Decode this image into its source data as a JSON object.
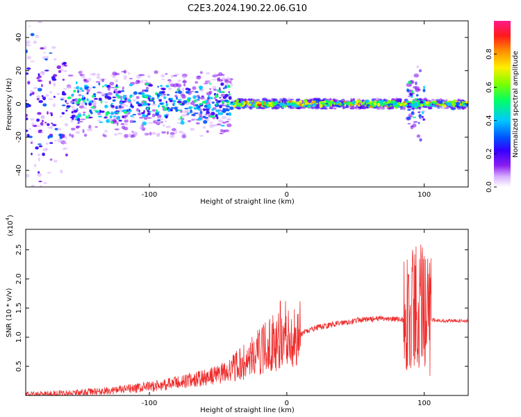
{
  "title": "C2E3.2024.190.22.06.G10",
  "chart_data": [
    {
      "type": "heatmap",
      "xlabel": "Height of straight line (km)",
      "ylabel": "Frequency (Hz)",
      "xlim": [
        -190,
        132
      ],
      "ylim": [
        -50,
        50
      ],
      "xticks": [
        -100,
        0,
        100
      ],
      "yticks": [
        -40,
        -20,
        0,
        20,
        40
      ],
      "colorbar": {
        "label": "Normalized spectral amplitude",
        "range": [
          0,
          1
        ],
        "ticks": [
          "0.0",
          "0.2",
          "0.4",
          "0.6",
          "0.8"
        ],
        "colors": [
          "#ffffff",
          "#d9b3ff",
          "#8a1cf0",
          "#3300ff",
          "#0055ff",
          "#00c8ff",
          "#00ff66",
          "#7dff00",
          "#ffee00",
          "#ff8c00",
          "#ff1a1a",
          "#ff1a8c"
        ]
      },
      "features": [
        {
          "x_range": [
            -190,
            -160
          ],
          "freq_center": 0,
          "freq_halfwidth": 50,
          "amplitude": 0.35
        },
        {
          "x_range": [
            -160,
            -40
          ],
          "freq_center": 0,
          "freq_halfwidth": 14,
          "amplitude": 0.55
        },
        {
          "x_range": [
            -40,
            132
          ],
          "freq_center": 0,
          "freq_halfwidth": 2,
          "amplitude": 0.8
        },
        {
          "x_range": [
            -20,
            -10
          ],
          "freq_center": 0,
          "freq_halfwidth": 1,
          "amplitude": 0.95
        },
        {
          "x_range": [
            88,
            100
          ],
          "freq_center": 0,
          "freq_halfwidth": 16,
          "amplitude": 0.6
        }
      ]
    },
    {
      "type": "line",
      "xlabel": "Height of straight line (km)",
      "ylabel": "SNR (10 * v/v)",
      "y_multiplier": "(x10",
      "y_multiplier_exp": "4",
      "xlim": [
        -190,
        132
      ],
      "ylim": [
        0,
        2.85
      ],
      "xticks": [
        -100,
        0,
        100
      ],
      "yticks": [
        "0.5",
        "1.0",
        "1.5",
        "2.0",
        "2.5"
      ],
      "color": "#ee2a2a",
      "series": [
        {
          "x": [
            -190,
            -170,
            -150,
            -130,
            -110,
            -90,
            -75,
            -60,
            -50,
            -40,
            -30,
            -20,
            -10,
            0,
            10,
            20,
            30,
            40,
            55,
            70,
            85,
            90,
            95,
            100,
            105,
            115,
            132
          ],
          "y": [
            0.02,
            0.03,
            0.05,
            0.08,
            0.12,
            0.18,
            0.24,
            0.3,
            0.36,
            0.45,
            0.58,
            0.75,
            0.9,
            0.95,
            1.05,
            1.15,
            1.2,
            1.25,
            1.3,
            1.32,
            1.3,
            1.5,
            1.6,
            1.4,
            1.3,
            1.28,
            1.28
          ]
        }
      ]
    }
  ]
}
